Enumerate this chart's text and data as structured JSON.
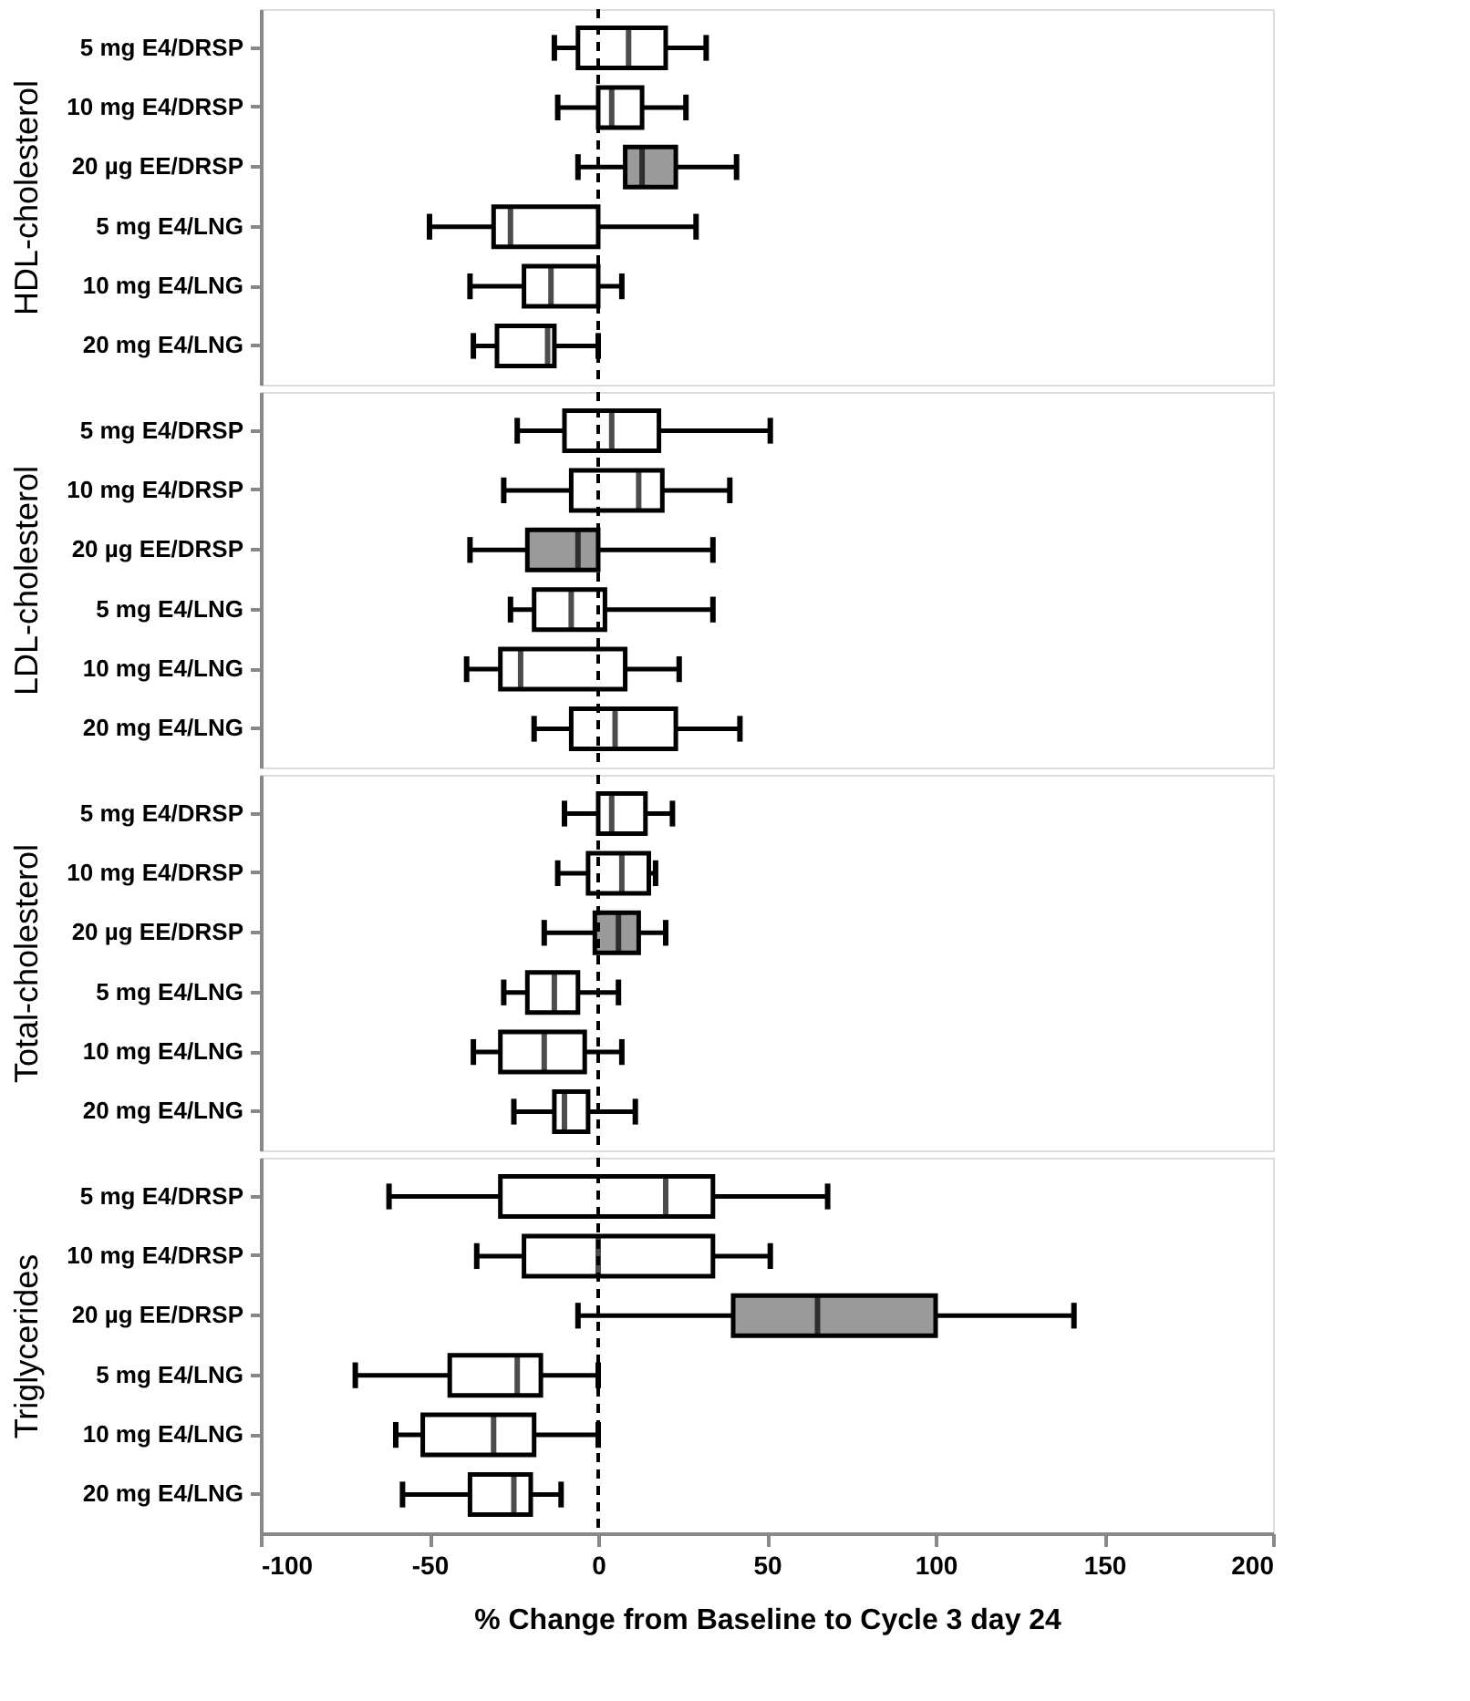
{
  "chart_data": [
    {
      "type": "box",
      "orientation": "horizontal",
      "ylabel": "HDL-cholesterol",
      "categories": [
        "5 mg E4/DRSP",
        "10 mg E4/DRSP",
        "20 µg EE/DRSP",
        "5 mg E4/LNG",
        "10 mg E4/LNG",
        "20 mg E4/LNG"
      ],
      "boxes": [
        {
          "low": -13,
          "q1": -6,
          "median": 9,
          "q3": 20,
          "high": 32
        },
        {
          "low": -12,
          "q1": 0,
          "median": 4,
          "q3": 13,
          "high": 26
        },
        {
          "low": -6,
          "q1": 8,
          "median": 13,
          "q3": 23,
          "high": 41
        },
        {
          "low": -50,
          "q1": -31,
          "median": -26,
          "q3": 0,
          "high": 29
        },
        {
          "low": -38,
          "q1": -22,
          "median": -14,
          "q3": 0,
          "high": 7
        },
        {
          "low": -37,
          "q1": -30,
          "median": -15,
          "q3": -13,
          "high": 0
        }
      ],
      "colors": [
        "#ffffff",
        "#ffffff",
        "#9a9a9a",
        "#ffffff",
        "#ffffff",
        "#ffffff"
      ],
      "xlim": [
        -100,
        200
      ],
      "xticks": [
        -100,
        -50,
        0,
        50,
        100,
        150,
        200
      ],
      "tick_labels": "y",
      "grid": false,
      "ref_lines": [
        {
          "axis": "x",
          "value": 0,
          "line_style": "dashed"
        }
      ]
    },
    {
      "type": "box",
      "orientation": "horizontal",
      "ylabel": "LDL-cholesterol",
      "categories": [
        "5 mg E4/DRSP",
        "10 mg E4/DRSP",
        "20 µg EE/DRSP",
        "5 mg E4/LNG",
        "10 mg E4/LNG",
        "20 mg E4/LNG"
      ],
      "boxes": [
        {
          "low": -24,
          "q1": -10,
          "median": 4,
          "q3": 18,
          "high": 51
        },
        {
          "low": -28,
          "q1": -8,
          "median": 12,
          "q3": 19,
          "high": 39
        },
        {
          "low": -38,
          "q1": -21,
          "median": -6,
          "q3": 0,
          "high": 34
        },
        {
          "low": -26,
          "q1": -19,
          "median": -8,
          "q3": 2,
          "high": 34
        },
        {
          "low": -39,
          "q1": -29,
          "median": -23,
          "q3": 8,
          "high": 24
        },
        {
          "low": -19,
          "q1": -8,
          "median": 5,
          "q3": 23,
          "high": 42
        }
      ],
      "colors": [
        "#ffffff",
        "#ffffff",
        "#9a9a9a",
        "#ffffff",
        "#ffffff",
        "#ffffff"
      ],
      "xlim": [
        -100,
        200
      ],
      "xticks": [
        -100,
        -50,
        0,
        50,
        100,
        150,
        200
      ],
      "tick_labels": "y",
      "grid": false,
      "ref_lines": [
        {
          "axis": "x",
          "value": 0,
          "line_style": "dashed"
        }
      ]
    },
    {
      "type": "box",
      "orientation": "horizontal",
      "ylabel": "Total-cholesterol",
      "categories": [
        "5 mg E4/DRSP",
        "10 mg E4/DRSP",
        "20 µg EE/DRSP",
        "5 mg E4/LNG",
        "10 mg E4/LNG",
        "20 mg E4/LNG"
      ],
      "boxes": [
        {
          "low": -10,
          "q1": 0,
          "median": 4,
          "q3": 14,
          "high": 22
        },
        {
          "low": -12,
          "q1": -3,
          "median": 7,
          "q3": 15,
          "high": 17
        },
        {
          "low": -16,
          "q1": -1,
          "median": 6,
          "q3": 12,
          "high": 20
        },
        {
          "low": -28,
          "q1": -21,
          "median": -13,
          "q3": -6,
          "high": 6
        },
        {
          "low": -37,
          "q1": -29,
          "median": -16,
          "q3": -4,
          "high": 7
        },
        {
          "low": -25,
          "q1": -13,
          "median": -10,
          "q3": -3,
          "high": 11
        }
      ],
      "colors": [
        "#ffffff",
        "#ffffff",
        "#9a9a9a",
        "#ffffff",
        "#ffffff",
        "#ffffff"
      ],
      "xlim": [
        -100,
        200
      ],
      "xticks": [
        -100,
        -50,
        0,
        50,
        100,
        150,
        200
      ],
      "tick_labels": "y",
      "grid": false,
      "ref_lines": [
        {
          "axis": "x",
          "value": 0,
          "line_style": "dashed"
        }
      ]
    },
    {
      "type": "box",
      "orientation": "horizontal",
      "ylabel": "Triglycerides",
      "xlabel": "% Change from Baseline to Cycle 3 day 24",
      "categories": [
        "5 mg E4/DRSP",
        "10 mg E4/DRSP",
        "20 µg EE/DRSP",
        "5 mg E4/LNG",
        "10 mg E4/LNG",
        "20 mg E4/LNG"
      ],
      "boxes": [
        {
          "low": -62,
          "q1": -29,
          "median": 20,
          "q3": 34,
          "high": 68
        },
        {
          "low": -36,
          "q1": -22,
          "median": 0,
          "q3": 34,
          "high": 51
        },
        {
          "low": -6,
          "q1": 40,
          "median": 65,
          "q3": 100,
          "high": 141
        },
        {
          "low": -72,
          "q1": -44,
          "median": -24,
          "q3": -17,
          "high": 0
        },
        {
          "low": -60,
          "q1": -52,
          "median": -31,
          "q3": -19,
          "high": 0
        },
        {
          "low": -58,
          "q1": -38,
          "median": -25,
          "q3": -20,
          "high": -11
        }
      ],
      "colors": [
        "#ffffff",
        "#ffffff",
        "#9a9a9a",
        "#ffffff",
        "#ffffff",
        "#ffffff"
      ],
      "xlim": [
        -100,
        200
      ],
      "xticks": [
        -100,
        -50,
        0,
        50,
        100,
        150,
        200
      ],
      "grid": false,
      "ref_lines": [
        {
          "axis": "x",
          "value": 0,
          "line_style": "dashed"
        }
      ]
    }
  ]
}
